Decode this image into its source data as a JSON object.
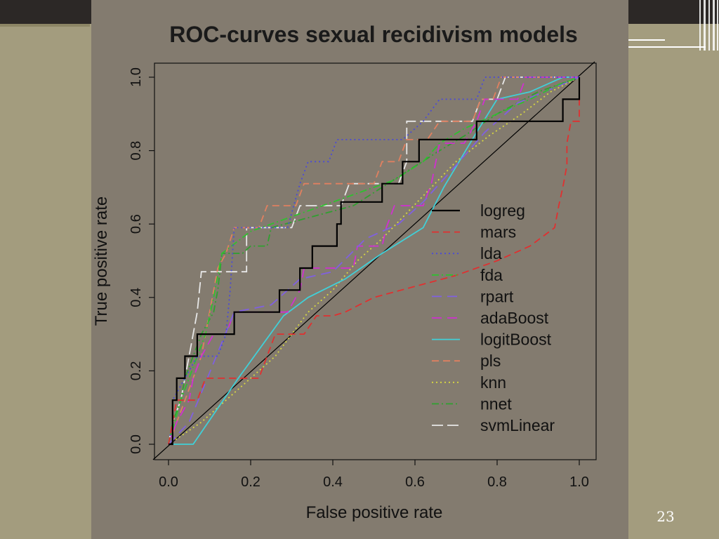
{
  "slide": {
    "number": "23"
  },
  "colors": {
    "background": "#a39c7e",
    "panel": "#837b6f",
    "top_bar": "#2c2826"
  },
  "chart_data": {
    "type": "line",
    "title": "ROC-curves  sexual recidivism models",
    "xlabel": "False positive rate",
    "ylabel": "True positive rate",
    "xlim": [
      0,
      1
    ],
    "ylim": [
      0,
      1
    ],
    "x_ticks": [
      "0.0",
      "0.2",
      "0.4",
      "0.6",
      "0.8",
      "1.0"
    ],
    "y_ticks": [
      "0.0",
      "0.2",
      "0.4",
      "0.6",
      "0.8",
      "1.0"
    ],
    "legend_position": "center-right",
    "grid": false,
    "reference_line": {
      "points": [
        [
          0,
          0
        ],
        [
          1,
          1
        ]
      ],
      "color": "#000000"
    },
    "series": [
      {
        "name": "logreg",
        "color": "#000000",
        "dash": "",
        "width": 2.2,
        "points": [
          [
            0.0,
            0.0
          ],
          [
            0.01,
            0.0
          ],
          [
            0.01,
            0.06
          ],
          [
            0.01,
            0.12
          ],
          [
            0.02,
            0.12
          ],
          [
            0.02,
            0.18
          ],
          [
            0.04,
            0.18
          ],
          [
            0.04,
            0.24
          ],
          [
            0.07,
            0.24
          ],
          [
            0.07,
            0.3
          ],
          [
            0.16,
            0.3
          ],
          [
            0.16,
            0.36
          ],
          [
            0.27,
            0.36
          ],
          [
            0.27,
            0.42
          ],
          [
            0.32,
            0.42
          ],
          [
            0.32,
            0.48
          ],
          [
            0.35,
            0.48
          ],
          [
            0.35,
            0.54
          ],
          [
            0.41,
            0.54
          ],
          [
            0.41,
            0.6
          ],
          [
            0.42,
            0.6
          ],
          [
            0.42,
            0.66
          ],
          [
            0.52,
            0.66
          ],
          [
            0.52,
            0.71
          ],
          [
            0.57,
            0.71
          ],
          [
            0.57,
            0.77
          ],
          [
            0.61,
            0.77
          ],
          [
            0.61,
            0.83
          ],
          [
            0.75,
            0.83
          ],
          [
            0.75,
            0.88
          ],
          [
            0.96,
            0.88
          ],
          [
            0.96,
            0.94
          ],
          [
            1.0,
            0.94
          ],
          [
            1.0,
            1.0
          ]
        ]
      },
      {
        "name": "mars",
        "color": "#e03030",
        "dash": "10 6",
        "width": 1.8,
        "points": [
          [
            0.0,
            0.0
          ],
          [
            0.01,
            0.06
          ],
          [
            0.02,
            0.12
          ],
          [
            0.07,
            0.12
          ],
          [
            0.09,
            0.18
          ],
          [
            0.22,
            0.18
          ],
          [
            0.24,
            0.24
          ],
          [
            0.26,
            0.3
          ],
          [
            0.33,
            0.3
          ],
          [
            0.36,
            0.35
          ],
          [
            0.4,
            0.35
          ],
          [
            0.43,
            0.36
          ],
          [
            0.5,
            0.4
          ],
          [
            0.6,
            0.43
          ],
          [
            0.7,
            0.46
          ],
          [
            0.8,
            0.5
          ],
          [
            0.88,
            0.54
          ],
          [
            0.94,
            0.59
          ],
          [
            0.95,
            0.65
          ],
          [
            0.96,
            0.7
          ],
          [
            0.97,
            0.76
          ],
          [
            0.97,
            0.82
          ],
          [
            0.98,
            0.88
          ],
          [
            1.0,
            0.88
          ],
          [
            1.0,
            0.94
          ],
          [
            1.0,
            1.0
          ]
        ]
      },
      {
        "name": "lda",
        "color": "#4a4ad8",
        "dash": "2 4",
        "width": 1.8,
        "points": [
          [
            0.0,
            0.0
          ],
          [
            0.01,
            0.06
          ],
          [
            0.01,
            0.12
          ],
          [
            0.04,
            0.18
          ],
          [
            0.07,
            0.24
          ],
          [
            0.12,
            0.24
          ],
          [
            0.14,
            0.3
          ],
          [
            0.15,
            0.42
          ],
          [
            0.16,
            0.59
          ],
          [
            0.29,
            0.59
          ],
          [
            0.32,
            0.71
          ],
          [
            0.34,
            0.77
          ],
          [
            0.39,
            0.77
          ],
          [
            0.41,
            0.83
          ],
          [
            0.57,
            0.83
          ],
          [
            0.62,
            0.88
          ],
          [
            0.66,
            0.94
          ],
          [
            0.75,
            0.94
          ],
          [
            0.77,
            1.0
          ],
          [
            1.0,
            1.0
          ]
        ]
      },
      {
        "name": "fda",
        "color": "#30c030",
        "dash": "10 4 2 4",
        "width": 1.8,
        "points": [
          [
            0.0,
            0.0
          ],
          [
            0.03,
            0.12
          ],
          [
            0.05,
            0.18
          ],
          [
            0.07,
            0.24
          ],
          [
            0.09,
            0.3
          ],
          [
            0.11,
            0.4
          ],
          [
            0.13,
            0.52
          ],
          [
            0.2,
            0.58
          ],
          [
            0.3,
            0.62
          ],
          [
            0.35,
            0.64
          ],
          [
            0.45,
            0.68
          ],
          [
            0.55,
            0.72
          ],
          [
            0.62,
            0.77
          ],
          [
            0.66,
            0.82
          ],
          [
            0.72,
            0.86
          ],
          [
            0.8,
            0.9
          ],
          [
            0.88,
            0.94
          ],
          [
            0.95,
            0.98
          ],
          [
            1.0,
            1.0
          ]
        ]
      },
      {
        "name": "rpart",
        "color": "#8060e0",
        "dash": "14 8",
        "width": 1.8,
        "points": [
          [
            0.0,
            0.0
          ],
          [
            0.05,
            0.06
          ],
          [
            0.08,
            0.14
          ],
          [
            0.12,
            0.25
          ],
          [
            0.16,
            0.36
          ],
          [
            0.25,
            0.38
          ],
          [
            0.32,
            0.45
          ],
          [
            0.4,
            0.47
          ],
          [
            0.48,
            0.56
          ],
          [
            0.56,
            0.6
          ],
          [
            0.62,
            0.66
          ],
          [
            0.7,
            0.76
          ],
          [
            0.77,
            0.85
          ],
          [
            0.85,
            0.93
          ],
          [
            1.0,
            1.0
          ]
        ]
      },
      {
        "name": "adaBoost",
        "color": "#d030d0",
        "dash": "14 8",
        "width": 1.8,
        "points": [
          [
            0.0,
            0.0
          ],
          [
            0.02,
            0.06
          ],
          [
            0.05,
            0.12
          ],
          [
            0.06,
            0.18
          ],
          [
            0.08,
            0.24
          ],
          [
            0.11,
            0.3
          ],
          [
            0.14,
            0.3
          ],
          [
            0.16,
            0.36
          ],
          [
            0.29,
            0.36
          ],
          [
            0.32,
            0.42
          ],
          [
            0.33,
            0.48
          ],
          [
            0.45,
            0.48
          ],
          [
            0.46,
            0.54
          ],
          [
            0.52,
            0.54
          ],
          [
            0.53,
            0.59
          ],
          [
            0.55,
            0.65
          ],
          [
            0.62,
            0.65
          ],
          [
            0.64,
            0.71
          ],
          [
            0.66,
            0.82
          ],
          [
            0.72,
            0.82
          ],
          [
            0.75,
            0.88
          ],
          [
            0.77,
            0.94
          ],
          [
            0.85,
            0.94
          ],
          [
            0.87,
            1.0
          ],
          [
            1.0,
            1.0
          ]
        ]
      },
      {
        "name": "logitBoost",
        "color": "#40d0d8",
        "dash": "",
        "width": 1.8,
        "points": [
          [
            0.0,
            0.0
          ],
          [
            0.03,
            0.0
          ],
          [
            0.06,
            0.0
          ],
          [
            0.17,
            0.18
          ],
          [
            0.28,
            0.35
          ],
          [
            0.34,
            0.4
          ],
          [
            0.43,
            0.45
          ],
          [
            0.52,
            0.52
          ],
          [
            0.62,
            0.59
          ],
          [
            0.67,
            0.7
          ],
          [
            0.75,
            0.85
          ],
          [
            0.8,
            0.94
          ],
          [
            0.88,
            0.96
          ],
          [
            0.96,
            1.0
          ],
          [
            1.0,
            1.0
          ]
        ]
      },
      {
        "name": "pls",
        "color": "#e08060",
        "dash": "10 6",
        "width": 1.8,
        "points": [
          [
            0.0,
            0.0
          ],
          [
            0.02,
            0.06
          ],
          [
            0.04,
            0.12
          ],
          [
            0.08,
            0.24
          ],
          [
            0.1,
            0.36
          ],
          [
            0.12,
            0.48
          ],
          [
            0.14,
            0.52
          ],
          [
            0.16,
            0.59
          ],
          [
            0.22,
            0.59
          ],
          [
            0.24,
            0.65
          ],
          [
            0.31,
            0.65
          ],
          [
            0.33,
            0.71
          ],
          [
            0.5,
            0.71
          ],
          [
            0.52,
            0.77
          ],
          [
            0.56,
            0.77
          ],
          [
            0.58,
            0.83
          ],
          [
            0.63,
            0.83
          ],
          [
            0.66,
            0.88
          ],
          [
            0.74,
            0.88
          ],
          [
            0.76,
            0.94
          ],
          [
            0.79,
            0.94
          ],
          [
            0.81,
            1.0
          ],
          [
            1.0,
            1.0
          ]
        ]
      },
      {
        "name": "knn",
        "color": "#d8d840",
        "dash": "2 4",
        "width": 1.8,
        "points": [
          [
            0.0,
            0.0
          ],
          [
            0.08,
            0.06
          ],
          [
            0.14,
            0.12
          ],
          [
            0.2,
            0.18
          ],
          [
            0.26,
            0.24
          ],
          [
            0.3,
            0.3
          ],
          [
            0.34,
            0.36
          ],
          [
            0.4,
            0.42
          ],
          [
            0.46,
            0.5
          ],
          [
            0.52,
            0.56
          ],
          [
            0.58,
            0.63
          ],
          [
            0.64,
            0.7
          ],
          [
            0.7,
            0.77
          ],
          [
            0.78,
            0.84
          ],
          [
            0.86,
            0.9
          ],
          [
            0.93,
            0.96
          ],
          [
            1.0,
            1.0
          ]
        ]
      },
      {
        "name": "nnet",
        "color": "#30a030",
        "dash": "10 4 2 4",
        "width": 1.8,
        "points": [
          [
            0.0,
            0.0
          ],
          [
            0.01,
            0.06
          ],
          [
            0.03,
            0.12
          ],
          [
            0.04,
            0.18
          ],
          [
            0.06,
            0.24
          ],
          [
            0.08,
            0.3
          ],
          [
            0.11,
            0.36
          ],
          [
            0.12,
            0.42
          ],
          [
            0.13,
            0.52
          ],
          [
            0.18,
            0.52
          ],
          [
            0.2,
            0.54
          ],
          [
            0.24,
            0.54
          ],
          [
            0.25,
            0.59
          ],
          [
            0.35,
            0.62
          ],
          [
            0.45,
            0.65
          ],
          [
            0.52,
            0.7
          ],
          [
            0.59,
            0.75
          ],
          [
            0.66,
            0.8
          ],
          [
            0.72,
            0.84
          ],
          [
            0.8,
            0.9
          ],
          [
            0.9,
            0.96
          ],
          [
            1.0,
            1.0
          ]
        ]
      },
      {
        "name": "svmLinear",
        "color": "#e8e8e8",
        "dash": "16 6",
        "width": 1.8,
        "points": [
          [
            0.0,
            0.0
          ],
          [
            0.01,
            0.06
          ],
          [
            0.03,
            0.12
          ],
          [
            0.05,
            0.24
          ],
          [
            0.07,
            0.36
          ],
          [
            0.08,
            0.47
          ],
          [
            0.19,
            0.47
          ],
          [
            0.19,
            0.59
          ],
          [
            0.3,
            0.59
          ],
          [
            0.32,
            0.65
          ],
          [
            0.42,
            0.65
          ],
          [
            0.44,
            0.71
          ],
          [
            0.56,
            0.71
          ],
          [
            0.58,
            0.77
          ],
          [
            0.58,
            0.88
          ],
          [
            0.74,
            0.88
          ],
          [
            0.76,
            0.94
          ],
          [
            0.8,
            0.94
          ],
          [
            0.82,
            1.0
          ],
          [
            1.0,
            1.0
          ]
        ]
      }
    ]
  }
}
